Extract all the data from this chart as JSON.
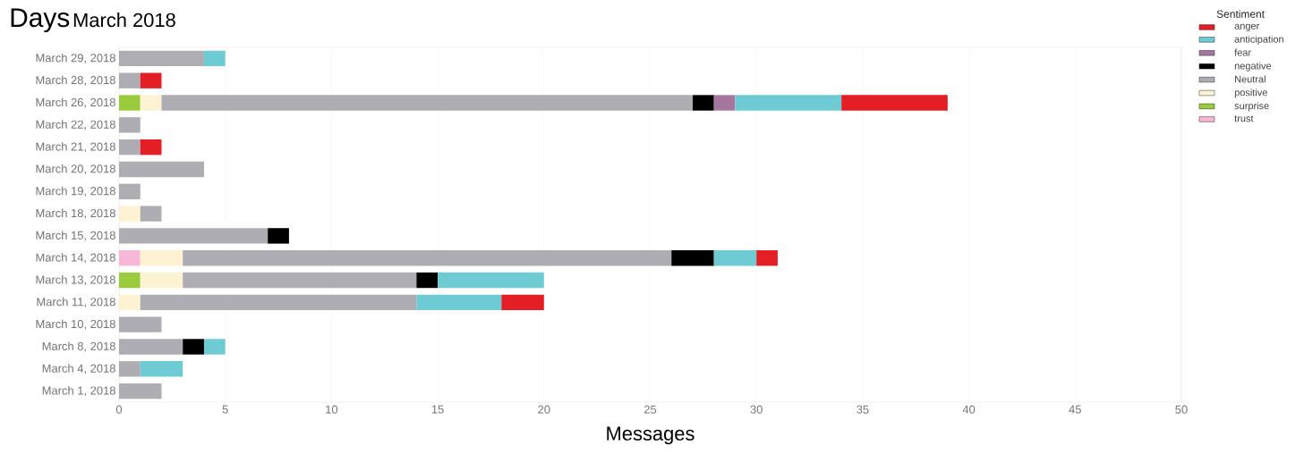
{
  "chart_data": {
    "type": "bar",
    "orientation": "horizontal",
    "stacked": true,
    "title": "Days",
    "subtitle": "March 2018",
    "xlabel": "Messages",
    "legend_title": "Sentiment",
    "legend": "right",
    "grid": "x",
    "categories": [
      "March 29, 2018",
      "March 28, 2018",
      "March 26, 2018",
      "March 22, 2018",
      "March 21, 2018",
      "March 20, 2018",
      "March 19, 2018",
      "March 18, 2018",
      "March 15, 2018",
      "March 14, 2018",
      "March 13, 2018",
      "March 11, 2018",
      "March 10, 2018",
      "March 8, 2018",
      "March 4, 2018",
      "March 1, 2018"
    ],
    "xlim": [
      0,
      50
    ],
    "xticks": [
      0,
      5,
      10,
      15,
      20,
      25,
      30,
      35,
      40,
      45,
      50
    ],
    "series": [
      {
        "name": "trust",
        "color": "#f7b7d6",
        "values": [
          null,
          null,
          null,
          null,
          null,
          null,
          null,
          null,
          null,
          1,
          null,
          null,
          null,
          null,
          null,
          null
        ]
      },
      {
        "name": "surprise",
        "color": "#9acb3c",
        "values": [
          null,
          null,
          1,
          null,
          null,
          null,
          null,
          null,
          null,
          null,
          1,
          null,
          null,
          null,
          null,
          null
        ]
      },
      {
        "name": "positive",
        "color": "#fdf3d3",
        "values": [
          null,
          null,
          1,
          null,
          null,
          null,
          null,
          1,
          null,
          2,
          2,
          1,
          null,
          null,
          null,
          null
        ]
      },
      {
        "name": "Neutral",
        "color": "#aeadb3",
        "values": [
          4,
          1,
          25,
          1,
          1,
          4,
          1,
          1,
          7,
          23,
          11,
          13,
          2,
          3,
          1,
          2
        ]
      },
      {
        "name": "negative",
        "color": "#000000",
        "values": [
          null,
          null,
          1,
          null,
          null,
          null,
          null,
          null,
          1,
          2,
          1,
          null,
          null,
          1,
          null,
          null
        ]
      },
      {
        "name": "fear",
        "color": "#a5779e",
        "values": [
          null,
          null,
          1,
          null,
          null,
          null,
          null,
          null,
          null,
          null,
          null,
          null,
          null,
          null,
          null,
          null
        ]
      },
      {
        "name": "anticipation",
        "color": "#6fcbd3",
        "values": [
          1,
          null,
          5,
          null,
          null,
          null,
          null,
          null,
          null,
          2,
          5,
          4,
          null,
          1,
          2,
          null
        ]
      },
      {
        "name": "anger",
        "color": "#e31e24",
        "values": [
          null,
          1,
          5,
          null,
          1,
          null,
          null,
          null,
          null,
          1,
          null,
          2,
          null,
          null,
          null,
          null
        ]
      }
    ]
  }
}
